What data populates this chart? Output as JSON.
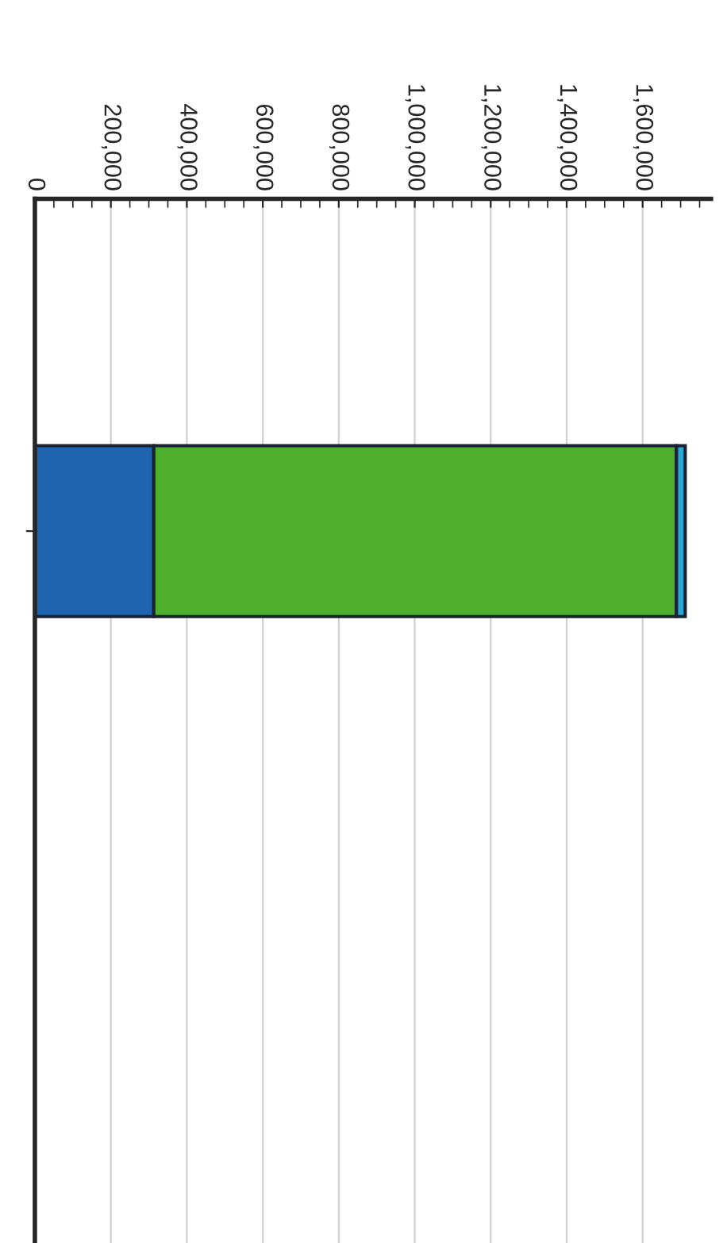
{
  "chart_data": {
    "type": "bar",
    "orientation": "horizontal",
    "stacked": true,
    "categories": [
      null
    ],
    "series": [
      {
        "color": "#1f64ae",
        "values": [
          313000
        ]
      },
      {
        "color": "#4daf2b",
        "values": [
          1376000
        ]
      },
      {
        "color": "#2aa7d4",
        "values": [
          23000
        ]
      }
    ],
    "xlim": [
      0,
      1780000
    ],
    "xticks": [
      {
        "value": 0,
        "label": "0"
      },
      {
        "value": 200000,
        "label": "200,000"
      },
      {
        "value": 400000,
        "label": "400,000"
      },
      {
        "value": 600000,
        "label": "600,000"
      },
      {
        "value": 800000,
        "label": "800,000"
      },
      {
        "value": 1000000,
        "label": "1,000,000"
      },
      {
        "value": 1200000,
        "label": "1,200,000"
      },
      {
        "value": 1400000,
        "label": "1,400,000"
      },
      {
        "value": 1600000,
        "label": "1,600,000"
      }
    ],
    "grid": "x",
    "legend": false
  }
}
